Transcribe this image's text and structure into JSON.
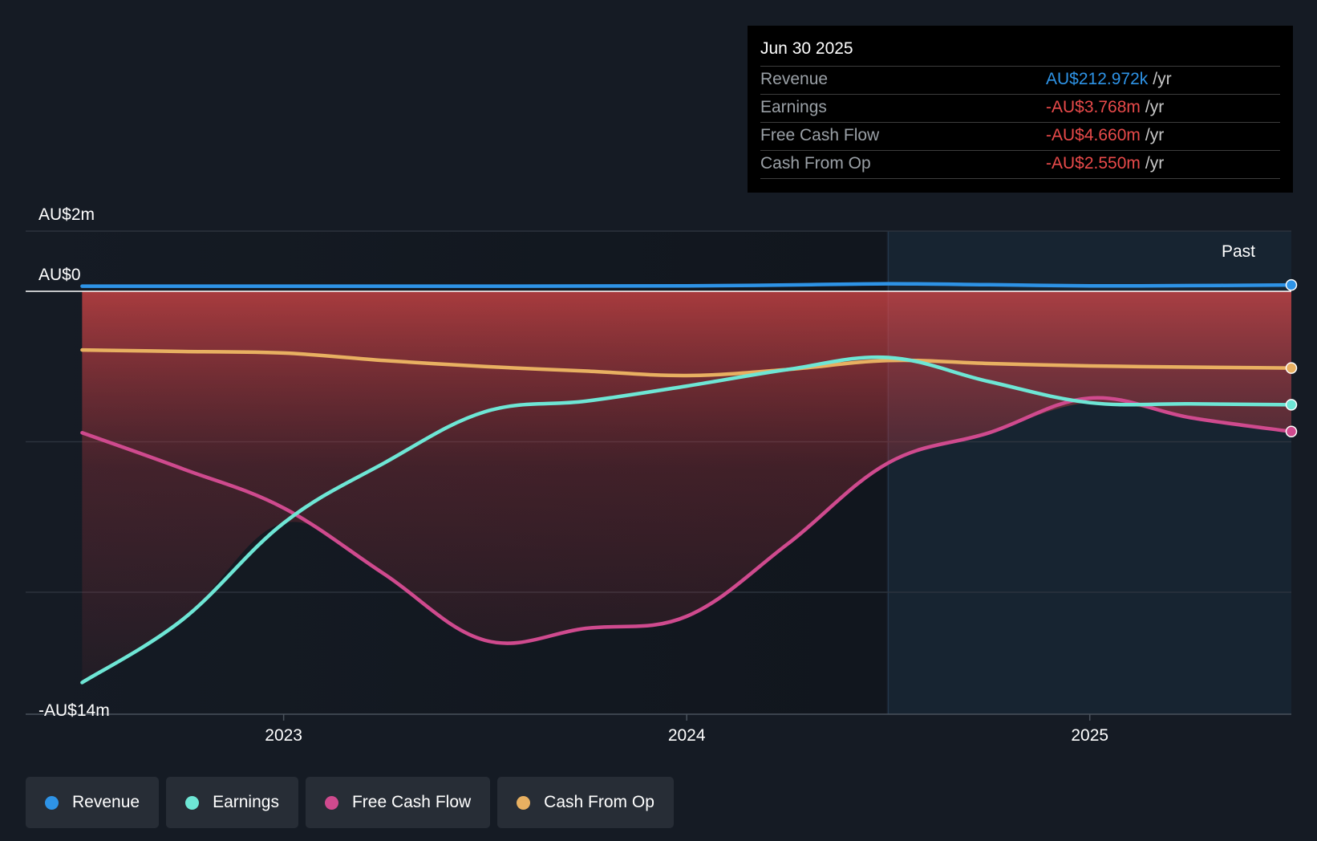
{
  "colors": {
    "revenue": "#2e93e6",
    "earnings": "#6ee6d5",
    "free_cash_flow": "#cf4a8e",
    "cash_from_op": "#e8b061",
    "negative": "#e84a4a",
    "background": "#151b24"
  },
  "tooltip": {
    "date": "Jun 30 2025",
    "unit": "/yr",
    "rows": [
      {
        "label": "Revenue",
        "value": "AU$212.972k"
      },
      {
        "label": "Earnings",
        "value": "-AU$3.768m"
      },
      {
        "label": "Free Cash Flow",
        "value": "-AU$4.660m"
      },
      {
        "label": "Cash From Op",
        "value": "-AU$2.550m"
      }
    ]
  },
  "legend": [
    {
      "label": "Revenue",
      "color": "#2e93e6"
    },
    {
      "label": "Earnings",
      "color": "#6ee6d5"
    },
    {
      "label": "Free Cash Flow",
      "color": "#cf4a8e"
    },
    {
      "label": "Cash From Op",
      "color": "#e8b061"
    }
  ],
  "chart_data": {
    "type": "line",
    "title": "",
    "xlabel": "",
    "ylabel": "",
    "y_unit": "AU$m",
    "ylim": [
      -14,
      2
    ],
    "y_tick_labels": [
      {
        "value": 2,
        "label": "AU$2m"
      },
      {
        "value": 0,
        "label": "AU$0"
      },
      {
        "value": -14,
        "label": "-AU$14m"
      }
    ],
    "y_gridlines": [
      2,
      0,
      -5,
      -10
    ],
    "x_domain": [
      2022.36,
      2025.5
    ],
    "x_ticks": [
      {
        "value": 2023.0,
        "label": "2023"
      },
      {
        "value": 2024.0,
        "label": "2024"
      },
      {
        "value": 2025.0,
        "label": "2025"
      }
    ],
    "past_region_start": 2024.5,
    "past_label": "Past",
    "series": [
      {
        "name": "Revenue",
        "key": "revenue",
        "x": [
          2022.5,
          2023.0,
          2023.5,
          2024.0,
          2024.25,
          2024.5,
          2024.75,
          2025.0,
          2025.25,
          2025.5
        ],
        "values": [
          0.17,
          0.17,
          0.17,
          0.18,
          0.21,
          0.25,
          0.22,
          0.18,
          0.19,
          0.21
        ]
      },
      {
        "name": "Earnings",
        "key": "earnings",
        "x": [
          2022.5,
          2022.75,
          2023.0,
          2023.25,
          2023.5,
          2023.75,
          2024.0,
          2024.25,
          2024.5,
          2024.75,
          2025.0,
          2025.25,
          2025.5
        ],
        "values": [
          -13.0,
          -10.9,
          -7.7,
          -5.7,
          -4.0,
          -3.65,
          -3.15,
          -2.6,
          -2.2,
          -3.0,
          -3.7,
          -3.74,
          -3.77
        ]
      },
      {
        "name": "Free Cash Flow",
        "key": "free_cash_flow",
        "x": [
          2022.5,
          2022.75,
          2023.0,
          2023.25,
          2023.5,
          2023.75,
          2024.0,
          2024.25,
          2024.5,
          2024.75,
          2025.0,
          2025.25,
          2025.5
        ],
        "values": [
          -4.7,
          -5.9,
          -7.2,
          -9.4,
          -11.6,
          -11.2,
          -10.8,
          -8.4,
          -5.7,
          -4.7,
          -3.55,
          -4.2,
          -4.66
        ]
      },
      {
        "name": "Cash From Op",
        "key": "cash_from_op",
        "x": [
          2022.5,
          2022.75,
          2023.0,
          2023.25,
          2023.5,
          2023.75,
          2024.0,
          2024.25,
          2024.5,
          2024.75,
          2025.0,
          2025.25,
          2025.5
        ],
        "values": [
          -1.95,
          -2.0,
          -2.05,
          -2.3,
          -2.5,
          -2.65,
          -2.8,
          -2.6,
          -2.3,
          -2.4,
          -2.48,
          -2.52,
          -2.55
        ]
      }
    ]
  }
}
